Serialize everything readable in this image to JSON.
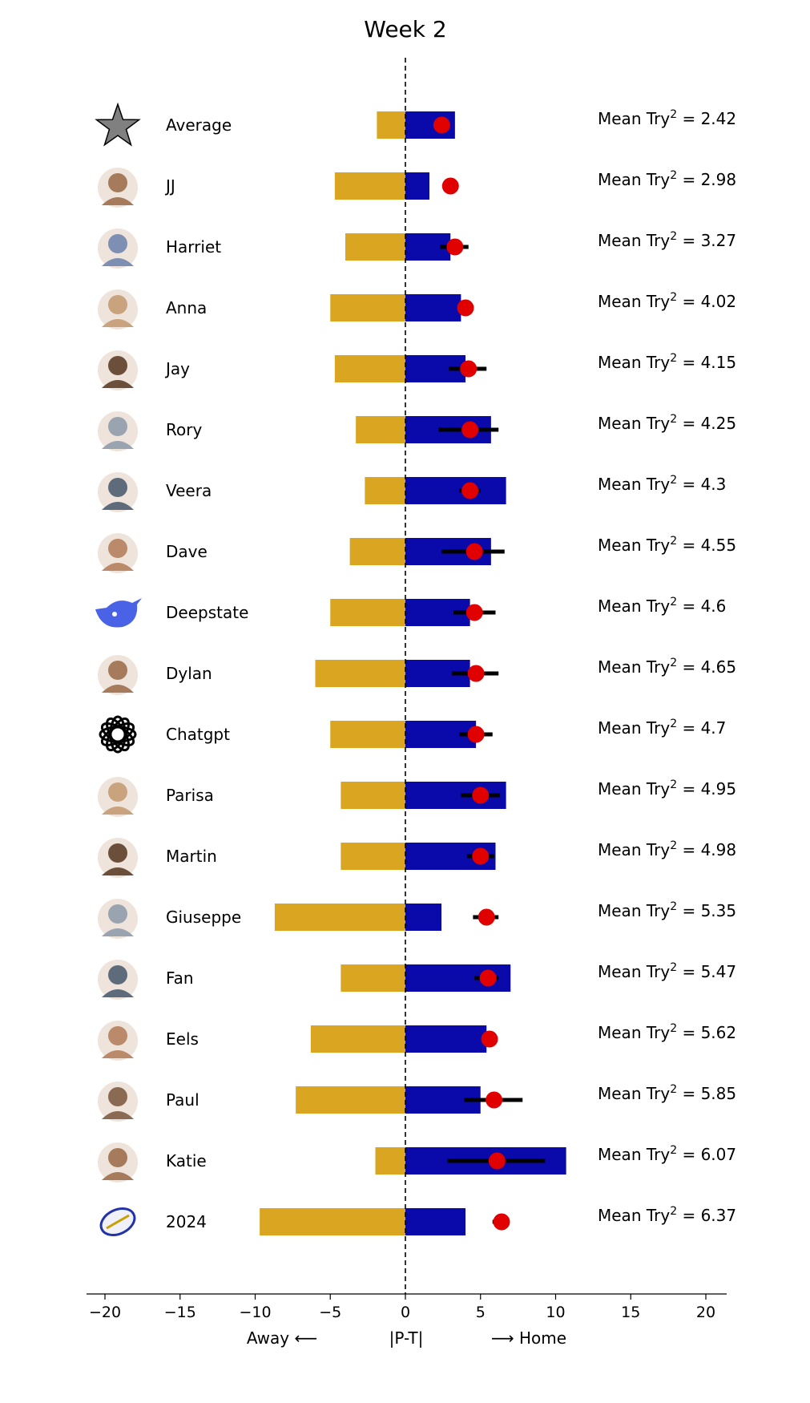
{
  "chart_data": {
    "type": "bar",
    "title": "Week 2",
    "xlabel_left": "Away ⟵",
    "xlabel_center": "|P-T|",
    "xlabel_right": "⟶ Home",
    "xlim": [
      -21,
      21.5
    ],
    "xticks": [
      -20,
      -15,
      -10,
      -5,
      0,
      5,
      10,
      15,
      20
    ],
    "xtick_labels": [
      "−20",
      "−15",
      "−10",
      "−5",
      "0",
      "5",
      "10",
      "15",
      "20"
    ],
    "zero_line": "dashed",
    "colors": {
      "away": "#DAA520",
      "home": "#0A0AAA",
      "marker": "#E00000",
      "error": "#000000"
    },
    "mean_label_prefix": "Mean Try",
    "mean_label_sup": "2",
    "rows": [
      {
        "name": "Average",
        "icon": "star-icon",
        "away": -1.9,
        "home": 3.3,
        "point": 2.42,
        "err": [
          2.42,
          2.42
        ],
        "mean": "2.42"
      },
      {
        "name": "JJ",
        "icon": "avatar-photo-icon",
        "away": -4.7,
        "home": 1.6,
        "point": 3.0,
        "err": [
          3.0,
          3.0
        ],
        "mean": "2.98"
      },
      {
        "name": "Harriet",
        "icon": "avatar-photo-icon",
        "away": -4.0,
        "home": 3.0,
        "point": 3.3,
        "err": [
          2.3,
          4.2
        ],
        "mean": "3.27"
      },
      {
        "name": "Anna",
        "icon": "elephant-icon",
        "away": -5.0,
        "home": 3.7,
        "point": 4.0,
        "err": [
          4.0,
          4.0
        ],
        "mean": "4.02"
      },
      {
        "name": "Jay",
        "icon": "avatar-photo-icon",
        "away": -4.7,
        "home": 4.0,
        "point": 4.2,
        "err": [
          2.9,
          5.4
        ],
        "mean": "4.15"
      },
      {
        "name": "Rory",
        "icon": "truck-icon",
        "away": -3.3,
        "home": 5.7,
        "point": 4.3,
        "err": [
          2.2,
          6.2
        ],
        "mean": "4.25"
      },
      {
        "name": "Veera",
        "icon": "computer-icon",
        "away": -2.7,
        "home": 6.7,
        "point": 4.3,
        "err": [
          3.6,
          5.0
        ],
        "mean": "4.3"
      },
      {
        "name": "Dave",
        "icon": "microwave-icon",
        "away": -3.7,
        "home": 5.7,
        "point": 4.6,
        "err": [
          2.4,
          6.6
        ],
        "mean": "4.55"
      },
      {
        "name": "Deepstate",
        "icon": "whale-icon",
        "away": -5.0,
        "home": 4.3,
        "point": 4.6,
        "err": [
          3.2,
          6.0
        ],
        "mean": "4.6"
      },
      {
        "name": "Dylan",
        "icon": "avatar-photo-icon",
        "away": -6.0,
        "home": 4.3,
        "point": 4.7,
        "err": [
          3.1,
          6.2
        ],
        "mean": "4.65"
      },
      {
        "name": "Chatgpt",
        "icon": "chatgpt-logo-icon",
        "away": -5.0,
        "home": 4.7,
        "point": 4.7,
        "err": [
          3.6,
          5.8
        ],
        "mean": "4.7"
      },
      {
        "name": "Parisa",
        "icon": "dinosaur-icon",
        "away": -4.3,
        "home": 6.7,
        "point": 5.0,
        "err": [
          3.7,
          6.3
        ],
        "mean": "4.95"
      },
      {
        "name": "Martin",
        "icon": "sheep-icon",
        "away": -4.3,
        "home": 6.0,
        "point": 5.0,
        "err": [
          4.1,
          5.9
        ],
        "mean": "4.98"
      },
      {
        "name": "Giuseppe",
        "icon": "avatar-photo-icon",
        "away": -8.7,
        "home": 2.4,
        "point": 5.4,
        "err": [
          4.5,
          6.2
        ],
        "mean": "5.35"
      },
      {
        "name": "Fan",
        "icon": "fan-icon",
        "away": -4.3,
        "home": 7.0,
        "point": 5.5,
        "err": [
          4.6,
          6.2
        ],
        "mean": "5.47"
      },
      {
        "name": "Eels",
        "icon": "eel-icon",
        "away": -6.3,
        "home": 5.4,
        "point": 5.6,
        "err": [
          5.6,
          5.6
        ],
        "mean": "5.62"
      },
      {
        "name": "Paul",
        "icon": "fire-extinguisher-icon",
        "away": -7.3,
        "home": 5.0,
        "point": 5.9,
        "err": [
          3.9,
          7.8
        ],
        "mean": "5.85"
      },
      {
        "name": "Katie",
        "icon": "pint-glass-icon",
        "away": -2.0,
        "home": 10.7,
        "point": 6.1,
        "err": [
          2.8,
          9.3
        ],
        "mean": "6.07"
      },
      {
        "name": "2024",
        "icon": "rugby-ball-icon",
        "away": -9.7,
        "home": 4.0,
        "point": 6.4,
        "err": [
          5.8,
          6.6
        ],
        "mean": "6.37"
      }
    ]
  }
}
